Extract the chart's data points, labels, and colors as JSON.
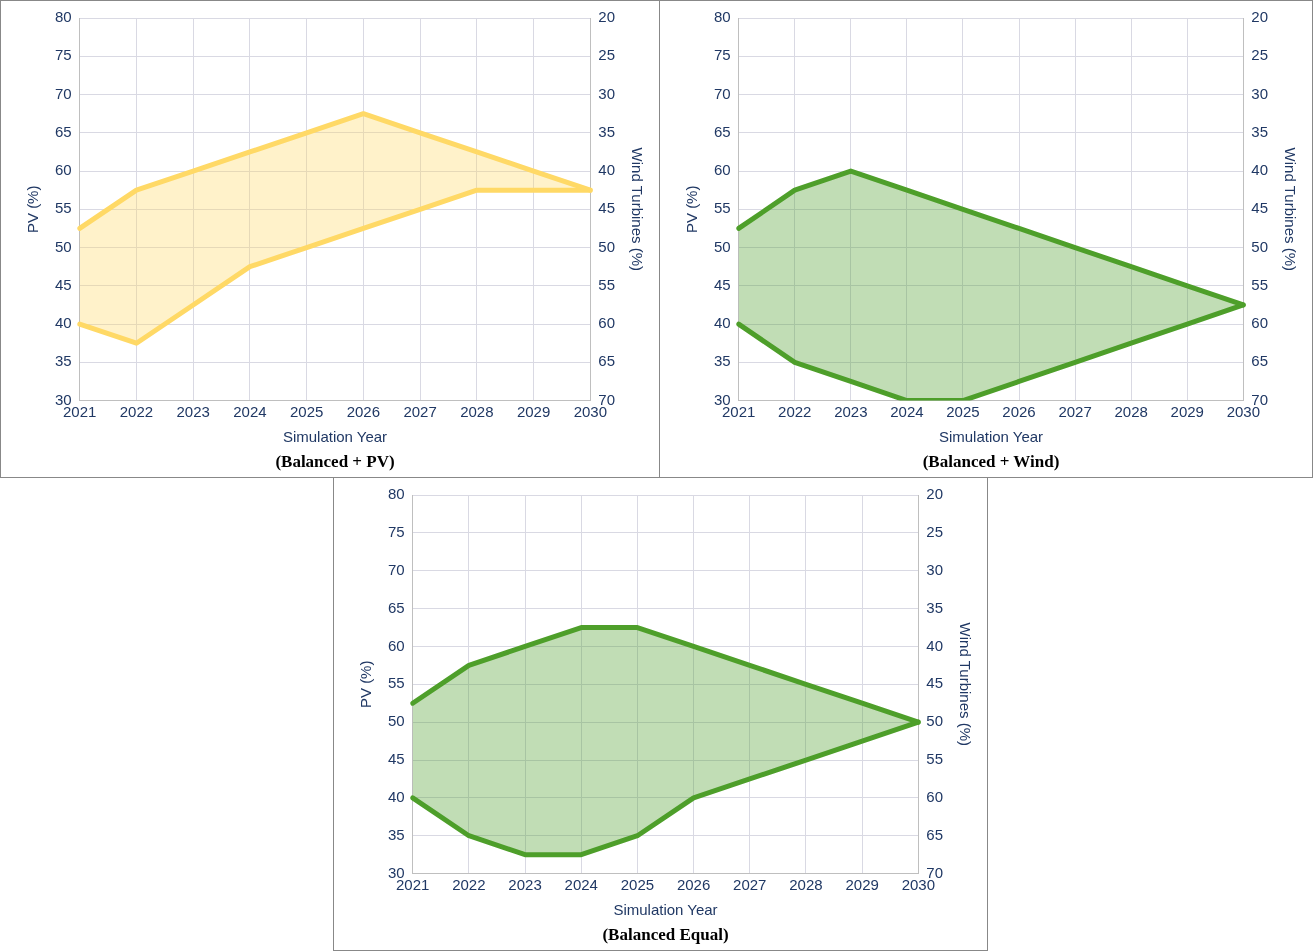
{
  "chart_data": [
    {
      "type": "line",
      "title": "(Balanced + PV)",
      "xlabel": "Simulation Year",
      "ylabel": "PV (%)",
      "y2label": "Wind Turbines (%)",
      "categories": [
        "2021",
        "2022",
        "2023",
        "2024",
        "2025",
        "2026",
        "2027",
        "2028",
        "2029",
        "2030"
      ],
      "series": [
        {
          "type": "area",
          "color": "#ffd966",
          "values": [
            52.5,
            57.5,
            60,
            62.5,
            65,
            67.5,
            65,
            62.5,
            60,
            57.5
          ]
        },
        {
          "color": "#ffd966",
          "values": [
            40,
            37.5,
            42.5,
            47.5,
            50,
            52.5,
            55,
            57.5,
            57.5,
            57.5
          ]
        }
      ],
      "ylim": [
        30,
        80
      ],
      "yticks": [
        30,
        35,
        40,
        45,
        50,
        55,
        60,
        65,
        70,
        75,
        80
      ],
      "y2lim": [
        70,
        20
      ],
      "y2ticks": [
        20,
        25,
        30,
        35,
        40,
        45,
        50,
        55,
        60,
        65,
        70
      ],
      "grid": true,
      "marker": "none",
      "line_style": "solid"
    },
    {
      "type": "line",
      "title": "(Balanced + Wind)",
      "xlabel": "Simulation Year",
      "ylabel": "PV (%)",
      "y2label": "Wind Turbines (%)",
      "categories": [
        "2021",
        "2022",
        "2023",
        "2024",
        "2025",
        "2026",
        "2027",
        "2028",
        "2029",
        "2030"
      ],
      "series": [
        {
          "type": "area",
          "color": "#4e9f2a",
          "values": [
            52.5,
            57.5,
            60,
            57.5,
            55,
            52.5,
            50,
            47.5,
            45,
            42.5
          ]
        },
        {
          "color": "#4e9f2a",
          "values": [
            40,
            35,
            32.5,
            30,
            30,
            32.5,
            35,
            37.5,
            40,
            42.5
          ]
        }
      ],
      "ylim": [
        30,
        80
      ],
      "yticks": [
        30,
        35,
        40,
        45,
        50,
        55,
        60,
        65,
        70,
        75,
        80
      ],
      "y2lim": [
        70,
        20
      ],
      "y2ticks": [
        20,
        25,
        30,
        35,
        40,
        45,
        50,
        55,
        60,
        65,
        70
      ],
      "grid": true,
      "marker": "none",
      "line_style": "solid"
    },
    {
      "type": "line",
      "title": "(Balanced Equal)",
      "xlabel": "Simulation Year",
      "ylabel": "PV (%)",
      "y2label": "Wind Turbines (%)",
      "categories": [
        "2021",
        "2022",
        "2023",
        "2024",
        "2025",
        "2026",
        "2027",
        "2028",
        "2029",
        "2030"
      ],
      "series": [
        {
          "type": "area",
          "color": "#4e9f2a",
          "values": [
            52.5,
            57.5,
            60,
            62.5,
            62.5,
            60,
            57.5,
            55,
            52.5,
            50
          ]
        },
        {
          "color": "#4e9f2a",
          "values": [
            40,
            35,
            32.5,
            32.5,
            35,
            40,
            42.5,
            45,
            47.5,
            50
          ]
        }
      ],
      "ylim": [
        30,
        80
      ],
      "yticks": [
        30,
        35,
        40,
        45,
        50,
        55,
        60,
        65,
        70,
        75,
        80
      ],
      "y2lim": [
        70,
        20
      ],
      "y2ticks": [
        20,
        25,
        30,
        35,
        40,
        45,
        50,
        55,
        60,
        65,
        70
      ],
      "grid": true,
      "marker": "none",
      "line_style": "solid"
    }
  ]
}
